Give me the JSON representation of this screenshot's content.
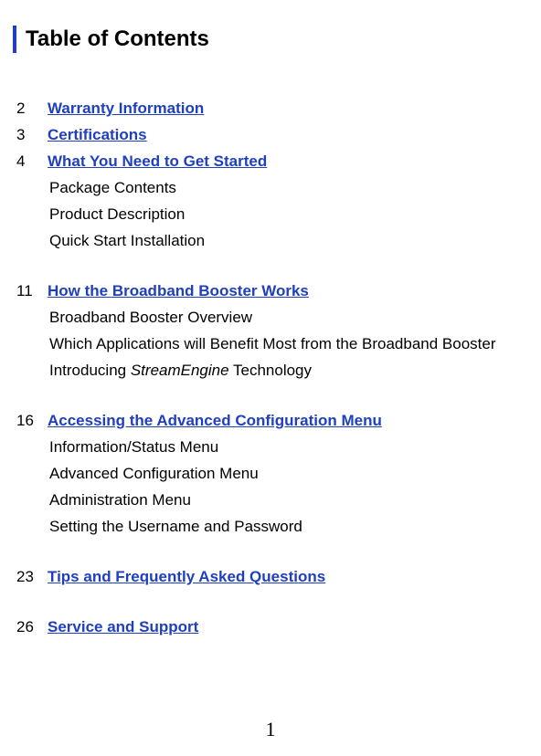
{
  "title": "Table of Contents",
  "colors": {
    "link": "#1f3fbf",
    "text": "#000000",
    "background": "#ffffff",
    "title_bar": "#1f3fbf"
  },
  "fonts": {
    "body_family": "Arial, Helvetica, sans-serif",
    "footer_family": "Times New Roman, Times, serif",
    "title_size_pt": 18,
    "body_size_pt": 13,
    "footer_size_pt": 16
  },
  "entries": {
    "e1": {
      "page": "2",
      "title": "Warranty Information"
    },
    "e2": {
      "page": "3",
      "title": "Certifications"
    },
    "e3": {
      "page": "4",
      "title": "What You Need to Get Started"
    },
    "e3s1": "Package Contents",
    "e3s2": "Product Description",
    "e3s3": "Quick Start Installation",
    "e4": {
      "page": "11",
      "title": "How the Broadband Booster Works"
    },
    "e4s1": "Broadband Booster Overview",
    "e4s2": "Which Applications will Benefit Most from the Broadband Booster",
    "e4s3_pre": "Introducing ",
    "e4s3_em": "StreamEngine",
    "e4s3_post": " Technology",
    "e5": {
      "page": "16",
      "title": "Accessing the Advanced Configuration Menu"
    },
    "e5s1": "Information/Status Menu",
    "e5s2": "Advanced Configuration Menu",
    "e5s3": "Administration Menu",
    "e5s4": "Setting the Username and Password",
    "e6": {
      "page": "23",
      "title": "Tips and Frequently Asked Questions"
    },
    "e7": {
      "page": "26",
      "title": "Service and Support"
    }
  },
  "footer_page": "1"
}
